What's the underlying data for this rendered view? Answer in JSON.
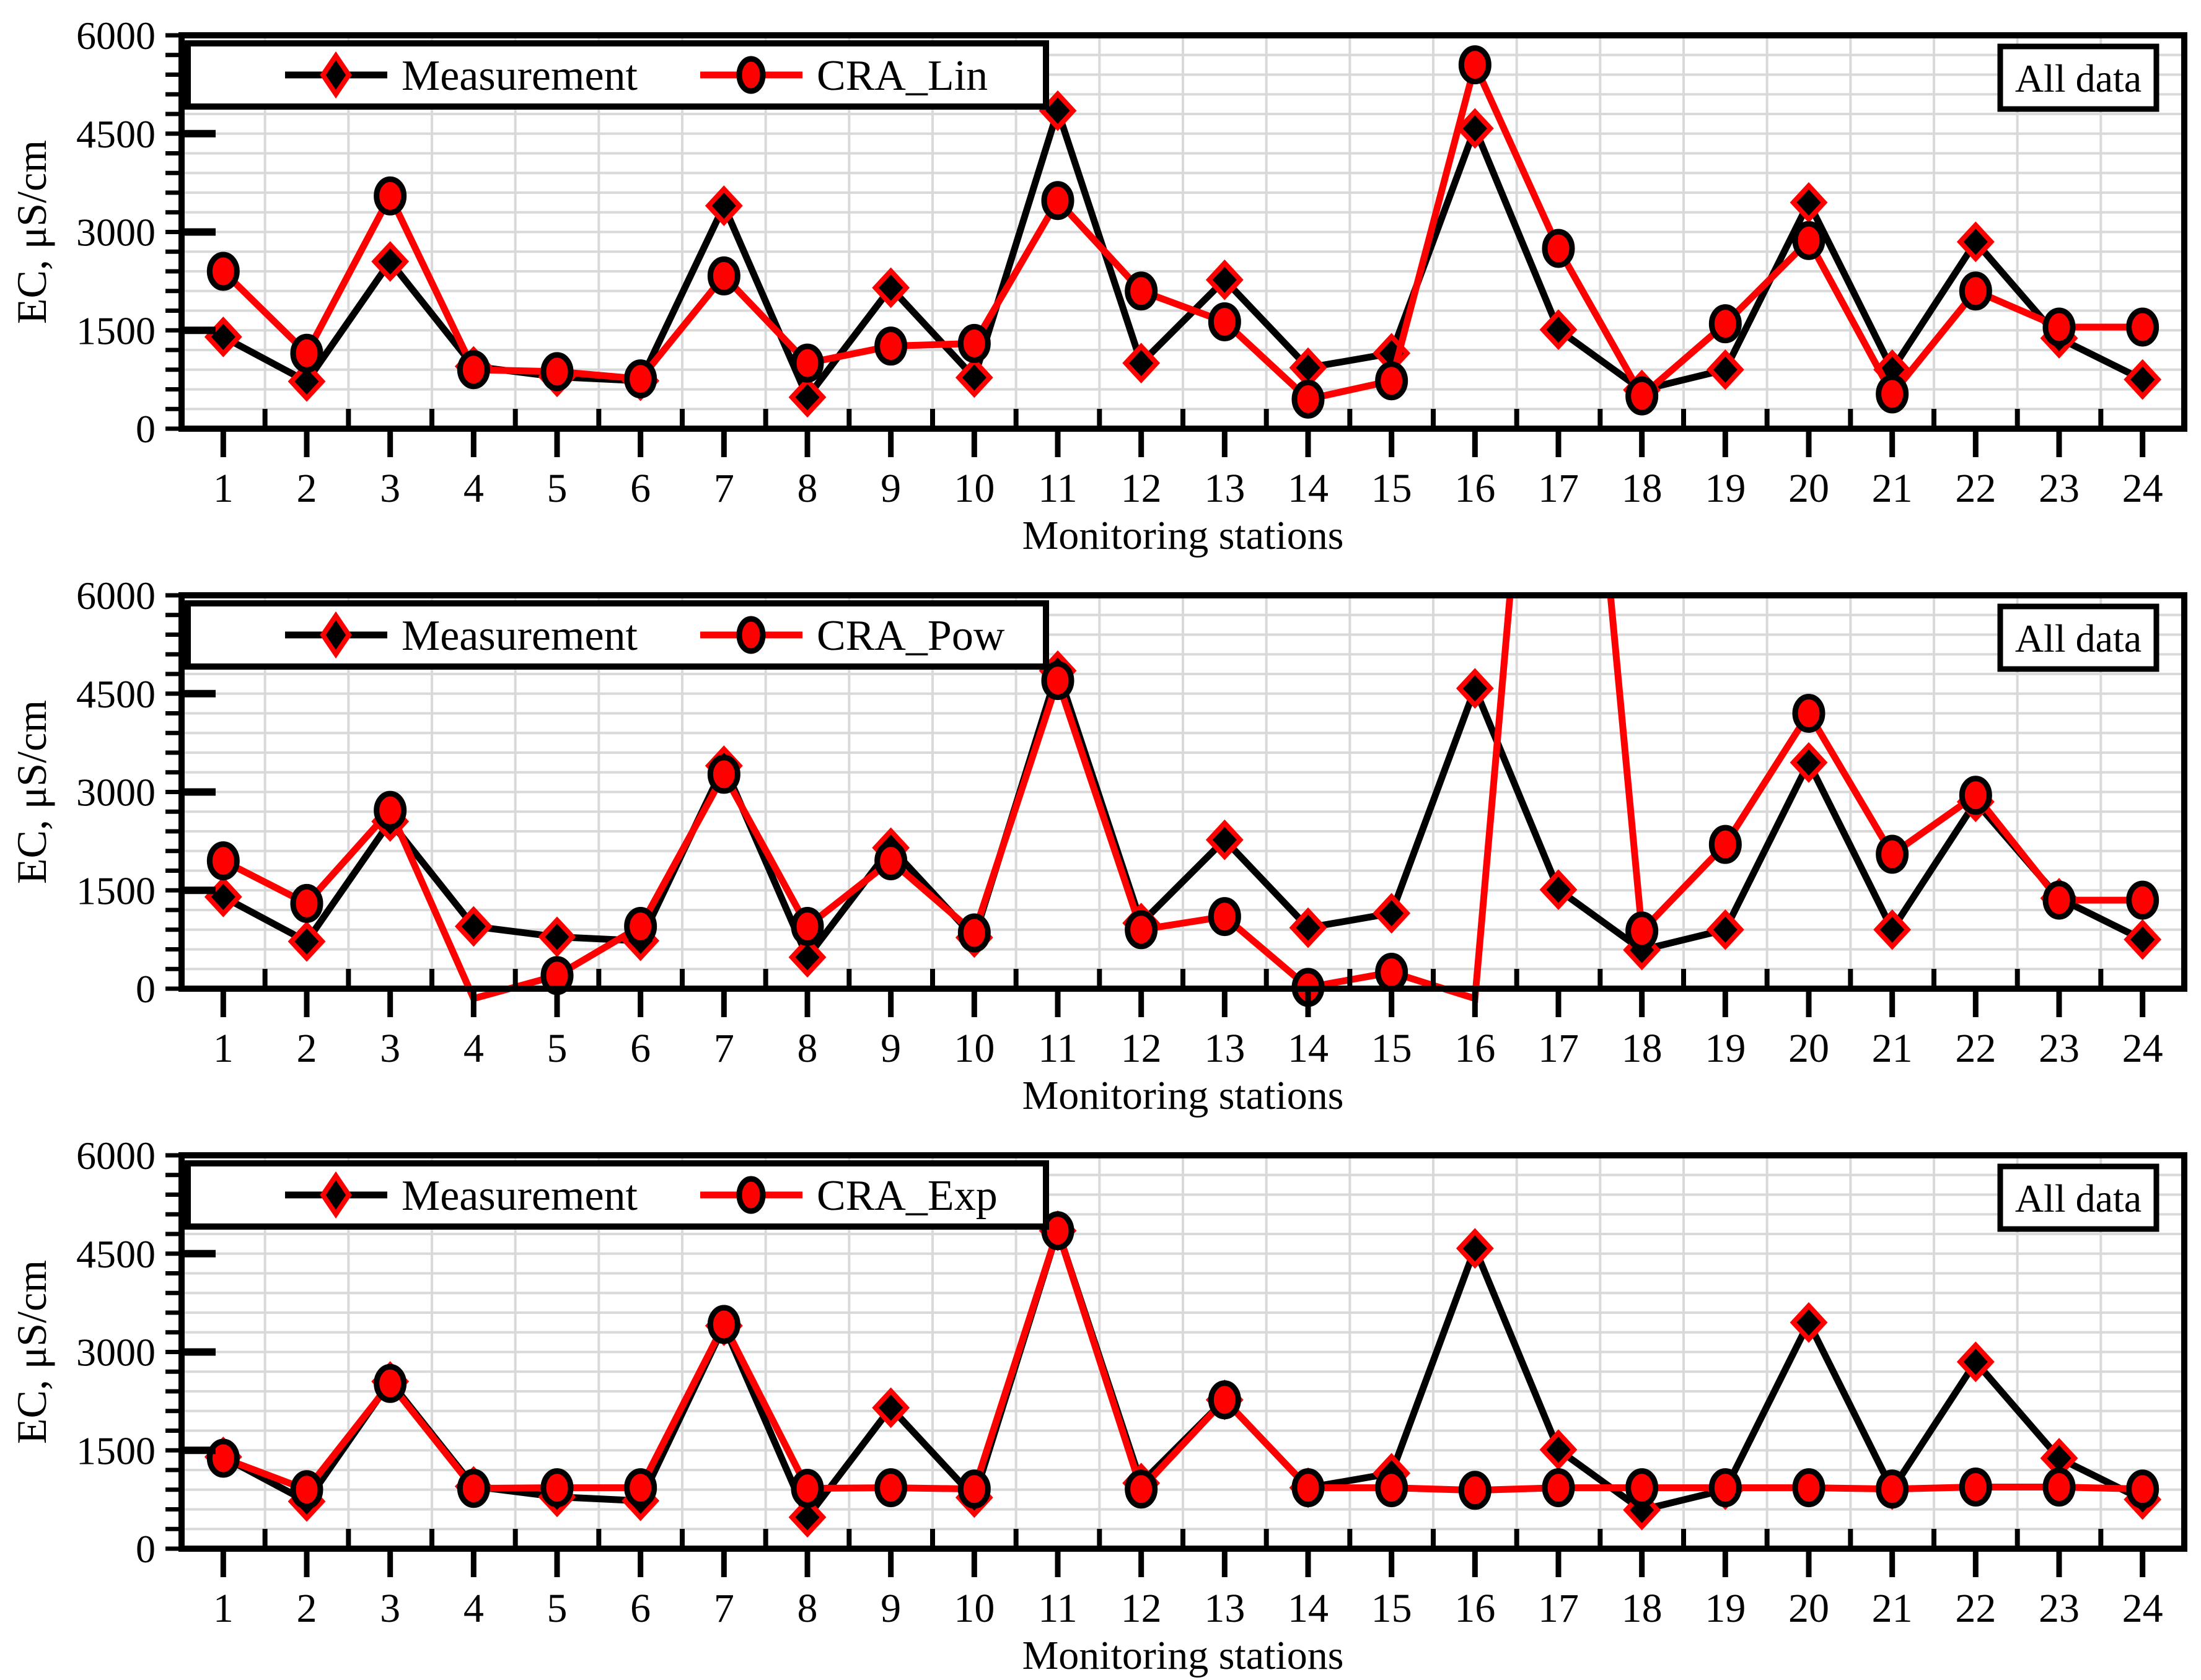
{
  "figure": {
    "background": "#FFFFFF",
    "accent_red": "#FF0000",
    "series_black": "#000000",
    "gridline_color": "#D9D9D9",
    "annotation_label": "All data"
  },
  "chart_data": [
    {
      "type": "line",
      "panel_index": 1,
      "annotation": "All data",
      "xlabel": "Monitoring stations",
      "ylabel": "EC, μS/cm",
      "x_categories": [
        "1",
        "2",
        "3",
        "4",
        "5",
        "6",
        "7",
        "8",
        "9",
        "10",
        "11",
        "12",
        "13",
        "14",
        "15",
        "16",
        "17",
        "18",
        "19",
        "20",
        "21",
        "22",
        "23",
        "24"
      ],
      "ylim": [
        0,
        6000
      ],
      "ytick_labels": [
        "0",
        "1500",
        "3000",
        "4500",
        "6000"
      ],
      "ytick_major_step": 1500,
      "ytick_minor_step": 300,
      "grid": true,
      "legend_position": "top-left-inside",
      "series": [
        {
          "name": "Measurement",
          "line_color": "#000000",
          "marker": "diamond",
          "marker_fill": "#000000",
          "marker_edge": "#FF0000",
          "values": [
            1400,
            720,
            2550,
            950,
            790,
            730,
            3400,
            480,
            2150,
            780,
            4850,
            1000,
            2270,
            930,
            1150,
            4580,
            1510,
            590,
            900,
            3450,
            900,
            2850,
            1380,
            750
          ]
        },
        {
          "name": "CRA_Lin",
          "line_color": "#FF0000",
          "marker": "circle",
          "marker_fill": "#FF0000",
          "marker_edge": "#000000",
          "values": [
            2400,
            1150,
            3550,
            900,
            870,
            760,
            2330,
            1000,
            1260,
            1300,
            3480,
            2100,
            1630,
            450,
            730,
            5550,
            2750,
            500,
            1600,
            2870,
            530,
            2100,
            1550,
            1550
          ]
        }
      ]
    },
    {
      "type": "line",
      "panel_index": 2,
      "annotation": "All data",
      "xlabel": "Monitoring stations",
      "ylabel": "EC, μS/cm",
      "x_categories": [
        "1",
        "2",
        "3",
        "4",
        "5",
        "6",
        "7",
        "8",
        "9",
        "10",
        "11",
        "12",
        "13",
        "14",
        "15",
        "16",
        "17",
        "18",
        "19",
        "20",
        "21",
        "22",
        "23",
        "24"
      ],
      "ylim": [
        0,
        6000
      ],
      "ytick_labels": [
        "0",
        "1500",
        "3000",
        "4500",
        "6000"
      ],
      "ytick_major_step": 1500,
      "ytick_minor_step": 300,
      "grid": true,
      "legend_position": "top-left-inside",
      "series": [
        {
          "name": "Measurement",
          "line_color": "#000000",
          "marker": "diamond",
          "marker_fill": "#000000",
          "marker_edge": "#FF0000",
          "values": [
            1400,
            720,
            2550,
            950,
            790,
            730,
            3400,
            480,
            2150,
            780,
            4850,
            1000,
            2270,
            930,
            1150,
            4580,
            1510,
            590,
            900,
            3450,
            900,
            2850,
            1380,
            750
          ]
        },
        {
          "name": "CRA_Pow",
          "line_color": "#FF0000",
          "marker": "circle",
          "marker_fill": "#FF0000",
          "marker_edge": "#000000",
          "values": [
            1950,
            1300,
            2720,
            -150,
            200,
            950,
            3270,
            950,
            1950,
            850,
            4700,
            900,
            1100,
            20,
            250,
            -150,
            14500,
            880,
            2200,
            4200,
            2050,
            2950,
            1350,
            1350
          ]
        }
      ]
    },
    {
      "type": "line",
      "panel_index": 3,
      "annotation": "All data",
      "xlabel": "Monitoring stations",
      "ylabel": "EC, μS/cm",
      "x_categories": [
        "1",
        "2",
        "3",
        "4",
        "5",
        "6",
        "7",
        "8",
        "9",
        "10",
        "11",
        "12",
        "13",
        "14",
        "15",
        "16",
        "17",
        "18",
        "19",
        "20",
        "21",
        "22",
        "23",
        "24"
      ],
      "ylim": [
        0,
        6000
      ],
      "ytick_labels": [
        "0",
        "1500",
        "3000",
        "4500",
        "6000"
      ],
      "ytick_major_step": 1500,
      "ytick_minor_step": 300,
      "grid": true,
      "legend_position": "top-left-inside",
      "series": [
        {
          "name": "Measurement",
          "line_color": "#000000",
          "marker": "diamond",
          "marker_fill": "#000000",
          "marker_edge": "#FF0000",
          "values": [
            1400,
            720,
            2550,
            950,
            790,
            730,
            3400,
            480,
            2150,
            780,
            4850,
            1000,
            2270,
            930,
            1150,
            4580,
            1510,
            590,
            900,
            3450,
            900,
            2850,
            1380,
            750
          ]
        },
        {
          "name": "CRA_Exp",
          "line_color": "#FF0000",
          "marker": "circle",
          "marker_fill": "#FF0000",
          "marker_edge": "#000000",
          "values": [
            1380,
            900,
            2520,
            920,
            930,
            930,
            3420,
            920,
            930,
            910,
            4850,
            910,
            2270,
            930,
            930,
            890,
            930,
            930,
            930,
            930,
            910,
            940,
            940,
            910
          ]
        }
      ]
    }
  ]
}
